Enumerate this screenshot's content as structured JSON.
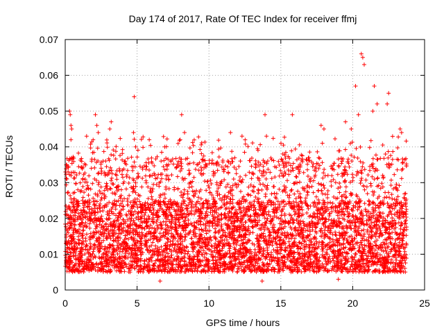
{
  "chart_data": {
    "type": "scatter",
    "title": "Day 174 of 2017, Rate Of TEC Index for receiver ffmj",
    "xlabel": "GPS time / hours",
    "ylabel": "ROTI / TECUs",
    "xlim": [
      0,
      25
    ],
    "ylim": [
      0,
      0.07
    ],
    "xticks": [
      "0",
      "5",
      "10",
      "15",
      "20",
      "25"
    ],
    "yticks": [
      "0",
      "0.01",
      "0.02",
      "0.03",
      "0.04",
      "0.05",
      "0.06",
      "0.07"
    ],
    "grid": true,
    "marker": "+",
    "color": "#ff0000",
    "x_extent_data": [
      0,
      23.75
    ],
    "typical_band": [
      0.005,
      0.025
    ],
    "series": [
      {
        "name": "ROTI",
        "points": [
          [
            0.1,
            0.035
          ],
          [
            0.2,
            0.033
          ],
          [
            0.3,
            0.05
          ],
          [
            0.35,
            0.049
          ],
          [
            0.4,
            0.046
          ],
          [
            0.45,
            0.045
          ],
          [
            0.4,
            0.042
          ],
          [
            2.1,
            0.049
          ],
          [
            2.2,
            0.046
          ],
          [
            2.3,
            0.044
          ],
          [
            3.2,
            0.047
          ],
          [
            3.1,
            0.045
          ],
          [
            4.8,
            0.054
          ],
          [
            4.75,
            0.044
          ],
          [
            4.9,
            0.04
          ],
          [
            8.1,
            0.049
          ],
          [
            8.3,
            0.044
          ],
          [
            8.0,
            0.042
          ],
          [
            11.5,
            0.044
          ],
          [
            12.3,
            0.043
          ],
          [
            13.9,
            0.049
          ],
          [
            14.0,
            0.043
          ],
          [
            15.8,
            0.049
          ],
          [
            17.8,
            0.046
          ],
          [
            18.0,
            0.045
          ],
          [
            19.5,
            0.047
          ],
          [
            19.9,
            0.045
          ],
          [
            20.6,
            0.066
          ],
          [
            20.7,
            0.065
          ],
          [
            20.8,
            0.063
          ],
          [
            20.2,
            0.057
          ],
          [
            20.4,
            0.049
          ],
          [
            21.5,
            0.057
          ],
          [
            21.7,
            0.052
          ],
          [
            21.4,
            0.05
          ],
          [
            22.5,
            0.055
          ],
          [
            22.4,
            0.052
          ],
          [
            23.3,
            0.045
          ],
          [
            23.4,
            0.044
          ],
          [
            6.6,
            0.0025
          ],
          [
            13.7,
            0.0025
          ],
          [
            19.0,
            0.003
          ]
        ]
      }
    ]
  }
}
